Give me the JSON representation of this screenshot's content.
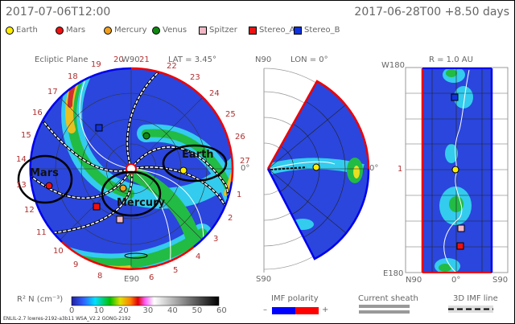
{
  "header": {
    "time": "2017-07-06T12:00",
    "run": "2017-06-28T00 +8.50 days"
  },
  "legend": [
    {
      "label": "Earth",
      "color": "#ffee00",
      "shape": "circle"
    },
    {
      "label": "Mars",
      "color": "#ee1111",
      "shape": "circle"
    },
    {
      "label": "Mercury",
      "color": "#f0a020",
      "shape": "circle"
    },
    {
      "label": "Venus",
      "color": "#118811",
      "shape": "circle"
    },
    {
      "label": "Spitzer",
      "color": "#f4b8c4",
      "shape": "square"
    },
    {
      "label": "Stereo_A",
      "color": "#ee1111",
      "shape": "square"
    },
    {
      "label": "Stereo_B",
      "color": "#1133dd",
      "shape": "square"
    }
  ],
  "ecliptic": {
    "title": "Ecliptic Plane",
    "top_label_a": "20",
    "top_label_w": "W90",
    "top_label_b": "21",
    "lat": "LAT = 3.45°",
    "bottom_label": "E90",
    "right_label": "0°",
    "ring_numbers": [
      "19",
      "22",
      "23",
      "24",
      "25",
      "26",
      "27",
      "1",
      "2",
      "3",
      "4",
      "5",
      "6",
      "8",
      "9",
      "10",
      "11",
      "12",
      "13",
      "14",
      "15",
      "16",
      "17",
      "18"
    ]
  },
  "meridional": {
    "top": "N90",
    "title": "LON = 0°",
    "bottom": "S90",
    "right_label": "0°"
  },
  "radial": {
    "title": "R = 1.0 AU",
    "top": "W180",
    "bottom": "E180",
    "left_mark": "1",
    "x_left": "N90",
    "x_mid": "0°",
    "x_right": "S90"
  },
  "annotations": {
    "earth": "Earth",
    "mars": "Mars",
    "mercury": "Mercury"
  },
  "colorbar": {
    "label": "R² N (cm⁻³)",
    "ticks": [
      "0",
      "10",
      "20",
      "30",
      "40",
      "50",
      "60"
    ],
    "range": [
      0,
      60
    ]
  },
  "imf": {
    "label": "IMF polarity",
    "minus": "–",
    "plus": "+",
    "neg_color": "#0000ff",
    "pos_color": "#ff0000"
  },
  "sheath": {
    "label": "Current sheath"
  },
  "imf_line": {
    "label": "3D IMF line"
  },
  "footer": "ENLIL-2.7 lowres-2192-a3b11 WSA_V2.2 GONG-2192"
}
